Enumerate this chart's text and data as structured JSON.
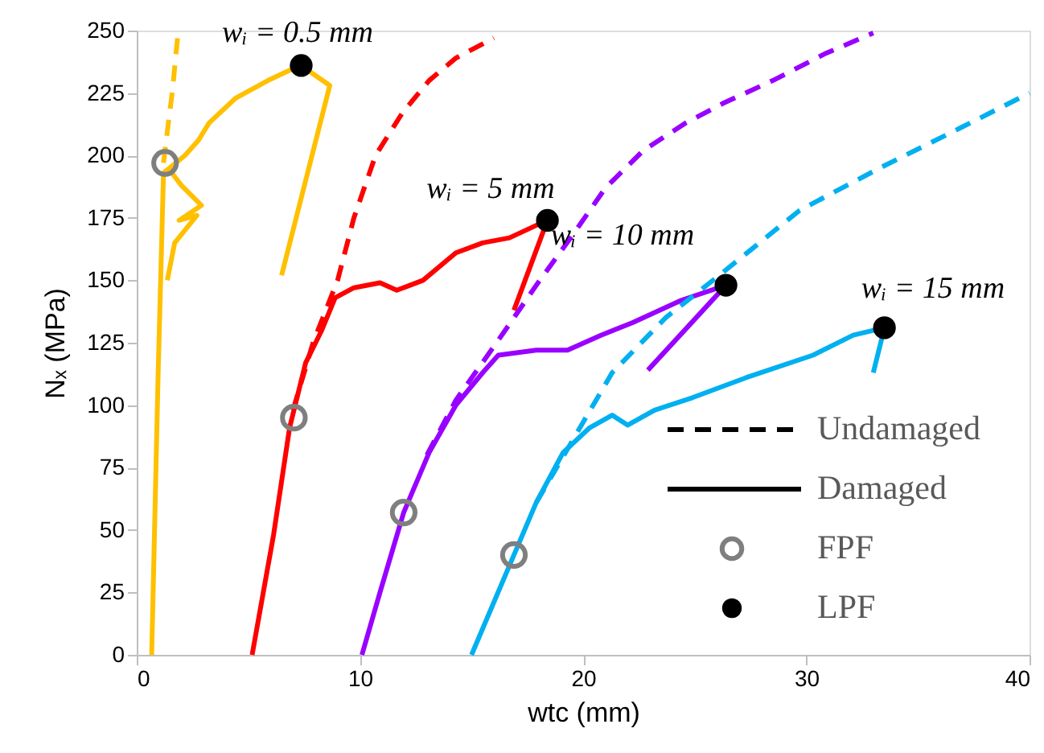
{
  "chart_data": {
    "type": "line",
    "xlabel": "wtc (mm)",
    "ylabel": "Nₓ (MPa)",
    "xlim": [
      0,
      40
    ],
    "xticks": [
      0,
      10,
      20,
      30,
      40
    ],
    "ylim": [
      0,
      250
    ],
    "yticks": [
      0,
      25,
      50,
      75,
      100,
      125,
      150,
      175,
      200,
      225,
      250
    ],
    "grid": false,
    "legend": "bottom right",
    "series": [
      {
        "line_style": "dashed",
        "color": "#ffc000",
        "x": [
          1.2,
          1.32,
          1.6,
          1.85
        ],
        "values": [
          197,
          206,
          226,
          249
        ]
      },
      {
        "line_style": "solid",
        "color": "#ffc000",
        "x": [
          0.67,
          0.96,
          1.2,
          2.16,
          2.76,
          3.24,
          4.44,
          5.88,
          7.07,
          7.37,
          8.65,
          6.49
        ],
        "values": [
          0,
          113,
          193,
          200,
          206,
          213,
          223,
          230,
          235,
          236,
          228,
          152
        ]
      },
      {
        "line_style": "solid",
        "color": "#ffc000",
        "x": [
          1.4,
          2.0,
          2.9,
          1.9,
          2.7,
          1.7,
          1.37
        ],
        "values": [
          195,
          188,
          180,
          174,
          176,
          165,
          150
        ]
      },
      {
        "line_style": "dashed",
        "color": "#ff0000",
        "x": [
          7.0,
          7.9,
          9.0,
          9.73,
          10.7,
          11.9,
          13.1,
          14.3,
          16.0
        ],
        "values": [
          98,
          125,
          150,
          175,
          200,
          217,
          230,
          239,
          247
        ]
      },
      {
        "line_style": "solid",
        "color": "#ff0000",
        "x": [
          5.17,
          6.13,
          6.85,
          7.57,
          8.29,
          8.89,
          9.73,
          10.9,
          11.65,
          12.83,
          14.3,
          15.5,
          16.7,
          17.9,
          18.4,
          16.9
        ],
        "values": [
          0,
          48,
          91,
          117,
          130,
          143,
          147,
          149,
          146,
          150,
          161,
          165,
          167,
          172,
          174,
          138
        ]
      },
      {
        "line_style": "dashed",
        "color": "#9900ff",
        "x": [
          13.0,
          14.3,
          16.2,
          17.9,
          19.6,
          21.0,
          22.7,
          24.6,
          26.3,
          28.5,
          30.9,
          33.0
        ],
        "values": [
          80,
          102,
          126,
          148,
          169,
          187,
          202,
          213,
          221,
          230,
          241,
          249
        ]
      },
      {
        "line_style": "solid",
        "color": "#9900ff",
        "x": [
          10.09,
          10.93,
          11.96,
          13.1,
          14.3,
          15.5,
          16.2,
          17.9,
          19.3,
          20.8,
          22.2,
          24.4,
          26.4,
          22.9
        ],
        "values": [
          0,
          26,
          57,
          81,
          100,
          113,
          120,
          122,
          122,
          128,
          133,
          142,
          148,
          114
        ]
      },
      {
        "line_style": "dashed",
        "color": "#00b0f0",
        "x": [
          17.9,
          19.6,
          21.3,
          23.7,
          26.1,
          29.7,
          33.3,
          36.9,
          40.0
        ],
        "values": [
          61,
          87,
          113,
          135,
          152,
          178,
          195,
          211,
          225
        ]
      },
      {
        "line_style": "solid",
        "color": "#00b0f0",
        "x": [
          15.0,
          16.9,
          17.9,
          19.1,
          20.3,
          21.3,
          22.0,
          23.2,
          24.9,
          27.3,
          30.3,
          32.1,
          33.5,
          33.0
        ],
        "values": [
          0,
          40,
          61,
          81,
          91,
          96,
          92,
          98,
          103,
          111,
          120,
          128,
          131,
          113
        ]
      },
      {
        "name": "FPF",
        "type": "scatter",
        "marker": "circle",
        "color": "#7f7f7f",
        "x": [
          1.27,
          7.04,
          11.96,
          16.9
        ],
        "values": [
          197,
          95,
          57,
          40
        ]
      },
      {
        "name": "LPF",
        "type": "scatter",
        "marker": "circle",
        "color": "#000000",
        "x": [
          7.37,
          18.4,
          26.4,
          33.5
        ],
        "values": [
          236,
          174,
          148,
          131
        ]
      }
    ],
    "annotations": [
      "wᵢ = 0.5 mm",
      "wᵢ = 5 mm",
      "wᵢ = 10 mm",
      "wᵢ = 15 mm",
      "Undamaged",
      "Damaged"
    ]
  }
}
